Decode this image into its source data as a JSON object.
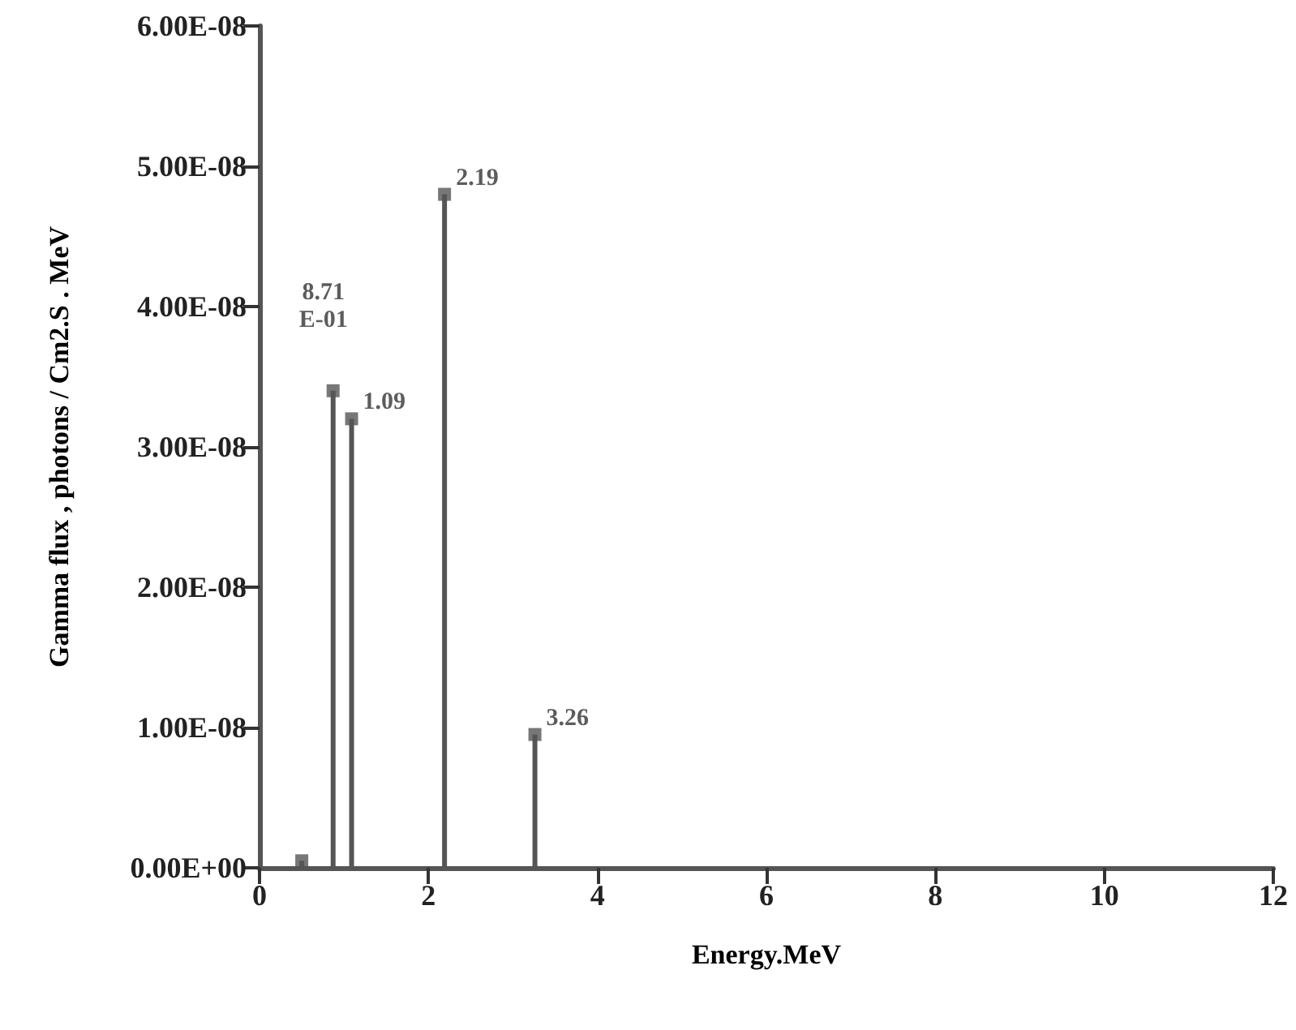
{
  "chart_data": {
    "type": "lollipop",
    "xlabel": "Energy.MeV",
    "ylabel": "Gamma flux , photons / Cm2.S . MeV",
    "x": [
      0.5,
      0.871,
      1.09,
      2.19,
      3.26
    ],
    "series": [
      {
        "color": "#555555",
        "values": [
          5e-10,
          3.4e-08,
          3.2e-08,
          4.8e-08,
          9.5e-09
        ]
      }
    ],
    "xlim": [
      0,
      12
    ],
    "xticks": [
      0,
      2,
      4,
      6,
      8,
      10,
      12
    ],
    "ylim": [
      0,
      6e-08
    ],
    "yticks": [
      {
        "value": 0,
        "label": "0.00E+00"
      },
      {
        "value": 1e-08,
        "label": "1.00E-08"
      },
      {
        "value": 2e-08,
        "label": "2.00E-08"
      },
      {
        "value": 3e-08,
        "label": "3.00E-08"
      },
      {
        "value": 4e-08,
        "label": "4.00E-08"
      },
      {
        "value": 5e-08,
        "label": "5.00E-08"
      },
      {
        "value": 6e-08,
        "label": "6.00E-08"
      }
    ],
    "marker": "square",
    "grid": false,
    "annotations": [
      {
        "text": "8.71\nE-01",
        "x": 0.871,
        "y": 3.4e-08
      },
      {
        "text": "1.09",
        "x": 1.09,
        "y": 3.2e-08
      },
      {
        "text": "2.19",
        "x": 2.19,
        "y": 4.8e-08
      },
      {
        "text": "3.26",
        "x": 3.26,
        "y": 9.5e-09
      }
    ]
  }
}
